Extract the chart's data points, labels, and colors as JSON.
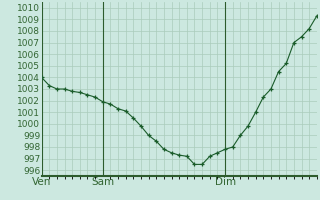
{
  "background_color": "#cce8e0",
  "grid_color": "#aaccbb",
  "line_color": "#1a5c2a",
  "marker_color": "#1a5c2a",
  "ylim": [
    995.5,
    1010.5
  ],
  "yticks": [
    996,
    997,
    998,
    999,
    1000,
    1001,
    1002,
    1003,
    1004,
    1005,
    1006,
    1007,
    1008,
    1009,
    1010
  ],
  "x_labels": [
    "Ven",
    "Sam",
    "Dim"
  ],
  "pressure": [
    1004.0,
    1003.3,
    1003.0,
    1003.0,
    1002.8,
    1002.7,
    1002.5,
    1002.3,
    1001.9,
    1001.7,
    1001.3,
    1001.1,
    1000.5,
    999.8,
    999.0,
    998.5,
    997.8,
    997.5,
    997.3,
    997.2,
    996.5,
    996.5,
    997.2,
    997.5,
    997.8,
    998.0,
    999.0,
    999.8,
    1001.0,
    1002.3,
    1003.0,
    1004.5,
    1005.2,
    1007.0,
    1007.5,
    1008.2,
    1009.3
  ],
  "vline_color": "#2d5c2d",
  "bottom_line_color": "#2d5c2d",
  "tick_color": "#336633",
  "tick_fontsize": 6.5,
  "xlabel_fontsize": 7.5
}
